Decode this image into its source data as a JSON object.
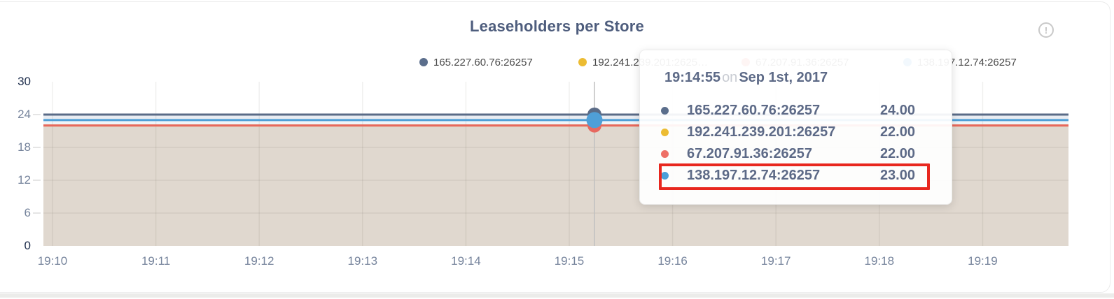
{
  "panel": {
    "title": "Leaseholders per Store",
    "info_icon_glyph": "!"
  },
  "legend": {
    "items": [
      {
        "label": "165.227.60.76:26257",
        "color": "#5b6e8c"
      },
      {
        "label": "192.241.239.201:2625…",
        "color": "#ecbc33"
      },
      {
        "label": "67.207.91.36:26257",
        "color": "#ee6f66"
      },
      {
        "label": "138.197.12.74:26257",
        "color": "#4aa0d9"
      }
    ]
  },
  "tooltip": {
    "time": "19:14:55",
    "conjunction": "on",
    "date": "Sep 1st, 2017",
    "highlight_color": "#e8271e",
    "rows": [
      {
        "name": "165.227.60.76:26257",
        "value": "24.00",
        "color": "#5b6e8c",
        "highlighted": false
      },
      {
        "name": "192.241.239.201:26257",
        "value": "22.00",
        "color": "#ecbc33",
        "highlighted": false
      },
      {
        "name": "67.207.91.36:26257",
        "value": "22.00",
        "color": "#ee6f66",
        "highlighted": false
      },
      {
        "name": "138.197.12.74:26257",
        "value": "23.00",
        "color": "#4aa0d9",
        "highlighted": true
      }
    ]
  },
  "chart_data": {
    "type": "line",
    "title": "Leaseholders per Store",
    "x": [
      "19:10",
      "19:11",
      "19:12",
      "19:13",
      "19:14",
      "19:15",
      "19:16",
      "19:17",
      "19:18",
      "19:19"
    ],
    "y_ticks": [
      30,
      24,
      18,
      12,
      6,
      0
    ],
    "ylim": [
      0,
      30
    ],
    "grid": true,
    "legend_position": "top",
    "hover": {
      "time": "19:14:55",
      "date": "Sep 1st, 2017"
    },
    "series": [
      {
        "name": "165.227.60.76:26257",
        "color": "#5a6b87",
        "value": 24,
        "values": [
          24,
          24,
          24,
          24,
          24,
          24,
          24,
          24,
          24,
          24
        ]
      },
      {
        "name": "192.241.239.201:26257",
        "color": "#eebe3d",
        "value": 22,
        "values": [
          22,
          22,
          22,
          22,
          22,
          22,
          22,
          22,
          22,
          22
        ]
      },
      {
        "name": "67.207.91.36:26257",
        "color": "#e7685f",
        "value": 22,
        "values": [
          22,
          22,
          22,
          22,
          22,
          22,
          22,
          22,
          22,
          22
        ]
      },
      {
        "name": "138.197.12.74:26257",
        "color": "#4f9fd7",
        "value": 23,
        "values": [
          23,
          23,
          23,
          23,
          23,
          23,
          23,
          23,
          23,
          23
        ]
      }
    ]
  }
}
